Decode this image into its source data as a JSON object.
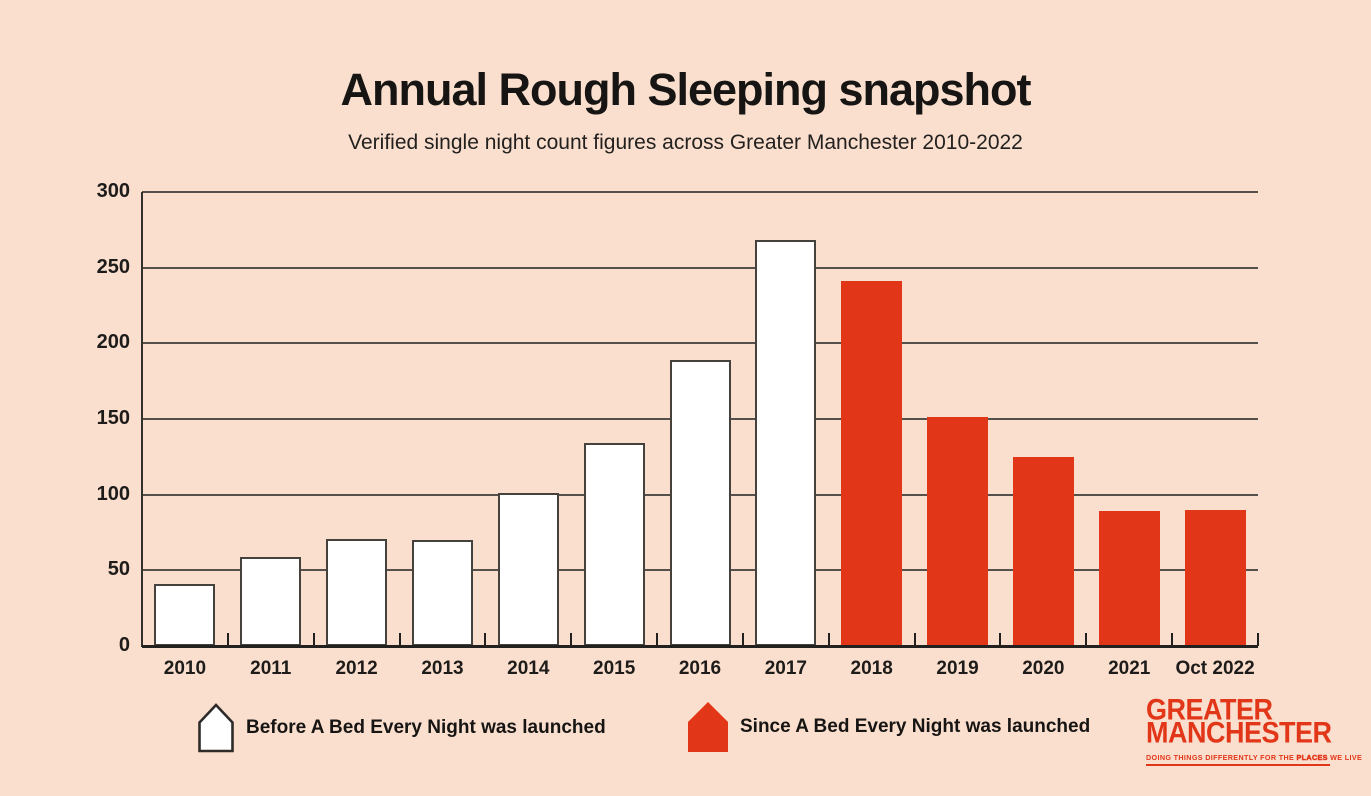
{
  "title": "Annual Rough Sleeping snapshot",
  "subtitle": "Verified single night count figures across Greater Manchester 2010-2022",
  "colors": {
    "background": "#fbdfce",
    "bar_before_fill": "#ffffff",
    "bar_before_outline": "#45413d",
    "bar_since_fill": "#e23619",
    "gridline": "#55504c",
    "axis": "#23211f",
    "text": "#1d1c1a",
    "brand_red": "#e23619"
  },
  "chart_data": {
    "type": "bar",
    "categories": [
      "2010",
      "2011",
      "2012",
      "2013",
      "2014",
      "2015",
      "2016",
      "2017",
      "2018",
      "2019",
      "2020",
      "2021",
      "Oct 2022"
    ],
    "values": [
      41,
      59,
      71,
      70,
      101,
      134,
      189,
      268,
      241,
      151,
      125,
      89,
      90
    ],
    "series": [
      {
        "name": "Before A Bed Every Night was launched",
        "color": "#ffffff",
        "category_indexes": [
          0,
          1,
          2,
          3,
          4,
          5,
          6,
          7
        ]
      },
      {
        "name": "Since A Bed Every Night was launched",
        "color": "#e23619",
        "category_indexes": [
          8,
          9,
          10,
          11,
          12
        ]
      }
    ],
    "before_count": 8,
    "title": "Annual Rough Sleeping snapshot",
    "subtitle": "Verified single night count figures across Greater Manchester 2010-2022",
    "xlabel": "",
    "ylabel": "",
    "ylim": [
      0,
      300
    ],
    "ytick_step": 50,
    "grid": "horizontal",
    "legend_position": "bottom"
  },
  "legend": {
    "before": {
      "label": "Before A Bed Every Night was launched",
      "icon": "house-icon",
      "fill": "#ffffff"
    },
    "since": {
      "label": "Since A Bed Every Night was launched",
      "icon": "house-icon",
      "fill": "#e23619"
    }
  },
  "logo": {
    "line1": "GREATER",
    "line2": "MANCHESTER",
    "tagline_pre": "DOING THINGS DIFFERENTLY FOR THE ",
    "tagline_strong": "PLACES",
    "tagline_post": " WE LIVE"
  }
}
